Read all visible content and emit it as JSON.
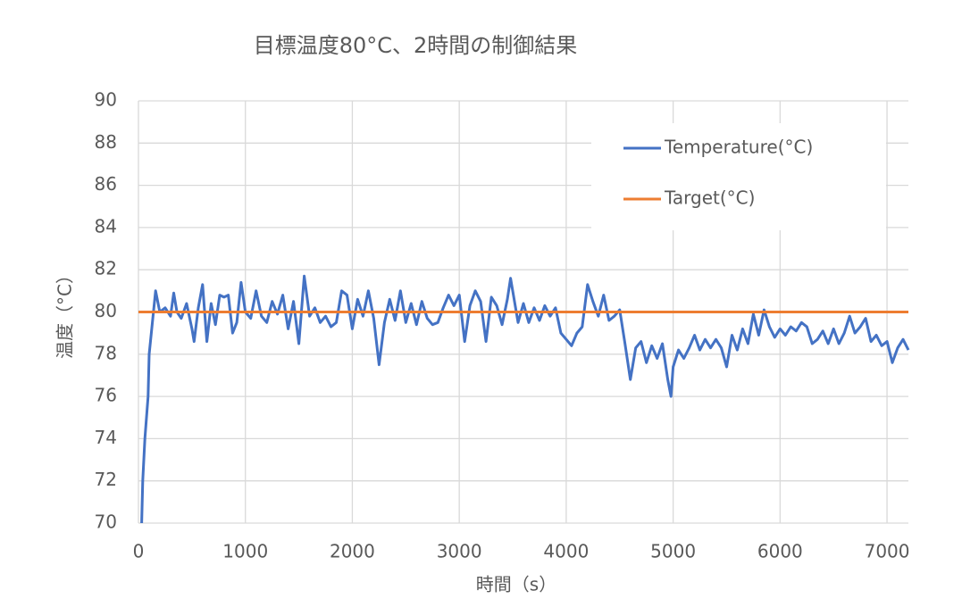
{
  "chart_data": {
    "type": "line",
    "title": "目標温度80°C、2時間の制御結果",
    "x_label": "時間（s）",
    "y_label": "温度（°C）",
    "xlim": [
      0,
      7200
    ],
    "xticks": [
      0,
      1000,
      2000,
      3000,
      4000,
      5000,
      6000,
      7000
    ],
    "ylim": [
      70,
      90
    ],
    "yticks": [
      70,
      72,
      74,
      76,
      78,
      80,
      82,
      84,
      86,
      88,
      90
    ],
    "grid": true,
    "legend": "upper right",
    "series": [
      {
        "name": "Temperature(°C)",
        "color": "#4472c4",
        "x": [
          30,
          40,
          60,
          90,
          100,
          130,
          160,
          200,
          250,
          300,
          330,
          360,
          400,
          450,
          500,
          520,
          560,
          600,
          640,
          680,
          720,
          760,
          800,
          840,
          880,
          920,
          960,
          1000,
          1050,
          1100,
          1150,
          1200,
          1250,
          1300,
          1350,
          1400,
          1450,
          1500,
          1550,
          1600,
          1650,
          1700,
          1750,
          1800,
          1850,
          1900,
          1950,
          2000,
          2050,
          2100,
          2150,
          2200,
          2250,
          2300,
          2350,
          2400,
          2450,
          2500,
          2550,
          2600,
          2650,
          2700,
          2750,
          2800,
          2850,
          2900,
          2950,
          3000,
          3050,
          3100,
          3150,
          3200,
          3250,
          3300,
          3350,
          3400,
          3450,
          3480,
          3550,
          3600,
          3650,
          3700,
          3750,
          3800,
          3850,
          3900,
          3950,
          4000,
          4050,
          4100,
          4150,
          4200,
          4250,
          4300,
          4350,
          4400,
          4450,
          4500,
          4550,
          4600,
          4650,
          4700,
          4750,
          4800,
          4850,
          4900,
          4950,
          4980,
          5000,
          5050,
          5100,
          5150,
          5200,
          5250,
          5300,
          5350,
          5400,
          5450,
          5500,
          5550,
          5600,
          5650,
          5700,
          5750,
          5800,
          5850,
          5900,
          5950,
          6000,
          6050,
          6100,
          6150,
          6200,
          6250,
          6300,
          6350,
          6400,
          6450,
          6500,
          6550,
          6600,
          6650,
          6700,
          6750,
          6800,
          6850,
          6900,
          6950,
          7000,
          7050,
          7100,
          7150,
          7200
        ],
        "values": [
          70,
          72,
          74,
          76,
          78,
          79.5,
          81,
          80,
          80.2,
          79.8,
          80.9,
          80,
          79.7,
          80.4,
          79.2,
          78.6,
          80.2,
          81.3,
          78.6,
          80.4,
          79.4,
          80.8,
          80.7,
          80.8,
          79,
          79.5,
          81.4,
          80,
          79.7,
          81,
          79.8,
          79.5,
          80.5,
          79.9,
          80.8,
          79.2,
          80.5,
          78.5,
          81.7,
          79.8,
          80.2,
          79.5,
          79.8,
          79.3,
          79.5,
          81,
          80.8,
          79.2,
          80.6,
          79.8,
          81,
          79.7,
          77.5,
          79.5,
          80.6,
          79.6,
          81,
          79.5,
          80.4,
          79.4,
          80.5,
          79.7,
          79.4,
          79.5,
          80.2,
          80.8,
          80.3,
          80.8,
          78.6,
          80.3,
          81,
          80.5,
          78.6,
          80.7,
          80.3,
          79.4,
          80.6,
          81.6,
          79.5,
          80.4,
          79.5,
          80.2,
          79.6,
          80.3,
          79.8,
          80.2,
          79,
          78.7,
          78.4,
          79,
          79.3,
          81.3,
          80.5,
          79.8,
          80.8,
          79.6,
          79.8,
          80.1,
          78.5,
          76.8,
          78.3,
          78.6,
          77.6,
          78.4,
          77.8,
          78.5,
          76.8,
          76,
          77.4,
          78.2,
          77.8,
          78.3,
          78.9,
          78.2,
          78.7,
          78.3,
          78.7,
          78.3,
          77.4,
          78.9,
          78.2,
          79.2,
          78.5,
          79.9,
          78.9,
          80.1,
          79.3,
          78.8,
          79.2,
          78.9,
          79.3,
          79.1,
          79.5,
          79.3,
          78.5,
          78.7,
          79.1,
          78.5,
          79.2,
          78.5,
          79,
          79.8,
          79,
          79.3,
          79.7,
          78.6,
          78.9,
          78.4,
          78.6,
          77.6,
          78.3,
          78.7,
          78.2
        ]
      },
      {
        "name": "Target(°C)",
        "color": "#ed7d31",
        "x": [
          0,
          7200
        ],
        "values": [
          80,
          80
        ]
      }
    ]
  }
}
